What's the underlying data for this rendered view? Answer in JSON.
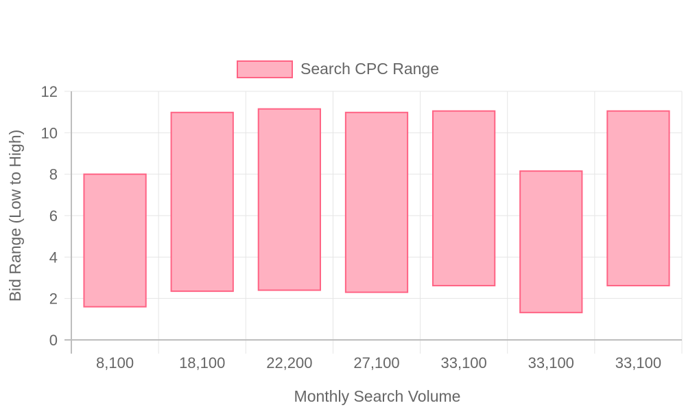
{
  "chart_data": {
    "type": "bar",
    "title": "",
    "xlabel": "Monthly Search Volume",
    "ylabel": "Bid Range (Low to High)",
    "categories": [
      "8,100",
      "18,100",
      "22,200",
      "27,100",
      "33,100",
      "33,100",
      "33,100"
    ],
    "series": [
      {
        "name": "Search CPC Range",
        "ranges": [
          [
            1.6,
            8.0
          ],
          [
            2.35,
            10.98
          ],
          [
            2.4,
            11.15
          ],
          [
            2.3,
            10.98
          ],
          [
            2.62,
            11.05
          ],
          [
            1.32,
            8.15
          ],
          [
            2.62,
            11.05
          ]
        ]
      }
    ],
    "ylim": [
      0,
      12
    ],
    "yticks": [
      "0",
      "2",
      "4",
      "6",
      "8",
      "10",
      "12"
    ],
    "grid": true,
    "legend": "top-center",
    "colors": {
      "bar_fill": "#ffb1c1",
      "bar_stroke": "#ff6384",
      "grid": "#e5e5e5",
      "axis": "#bdbdbd",
      "text": "#666666"
    }
  }
}
